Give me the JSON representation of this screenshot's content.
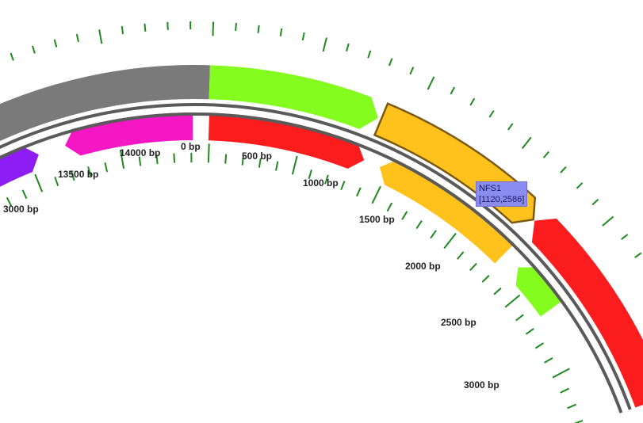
{
  "map": {
    "tick_labels": [
      "0 bp",
      "500 bp",
      "1000 bp",
      "1500 bp",
      "2000 bp",
      "2500 bp",
      "3000 bp",
      "13500 bp",
      "14000 bp",
      "3000 bp"
    ],
    "tooltip": {
      "name": "NFS1",
      "range": "[1120,2586]"
    },
    "features": [
      {
        "id": "grey-outer",
        "color": "#7a7a7a",
        "strand": "outer"
      },
      {
        "id": "green-outer",
        "color": "#84fc1e",
        "strand": "outer"
      },
      {
        "id": "nfs1",
        "color": "#ffc21c",
        "strand": "outer",
        "selected": true
      },
      {
        "id": "red-outer",
        "color": "#fb1d1d",
        "strand": "outer"
      },
      {
        "id": "magenta-inner",
        "color": "#f516c4",
        "strand": "inner"
      },
      {
        "id": "purple-inner",
        "color": "#8d1cf5",
        "strand": "inner"
      },
      {
        "id": "red-inner",
        "color": "#fb1d1d",
        "strand": "inner"
      },
      {
        "id": "orange-inner",
        "color": "#ffc21c",
        "strand": "inner"
      },
      {
        "id": "green-inner",
        "color": "#84fc1e",
        "strand": "inner"
      }
    ],
    "colors": {
      "backbone": "#5a5a5a",
      "ticks": "#1f8a1f"
    }
  }
}
